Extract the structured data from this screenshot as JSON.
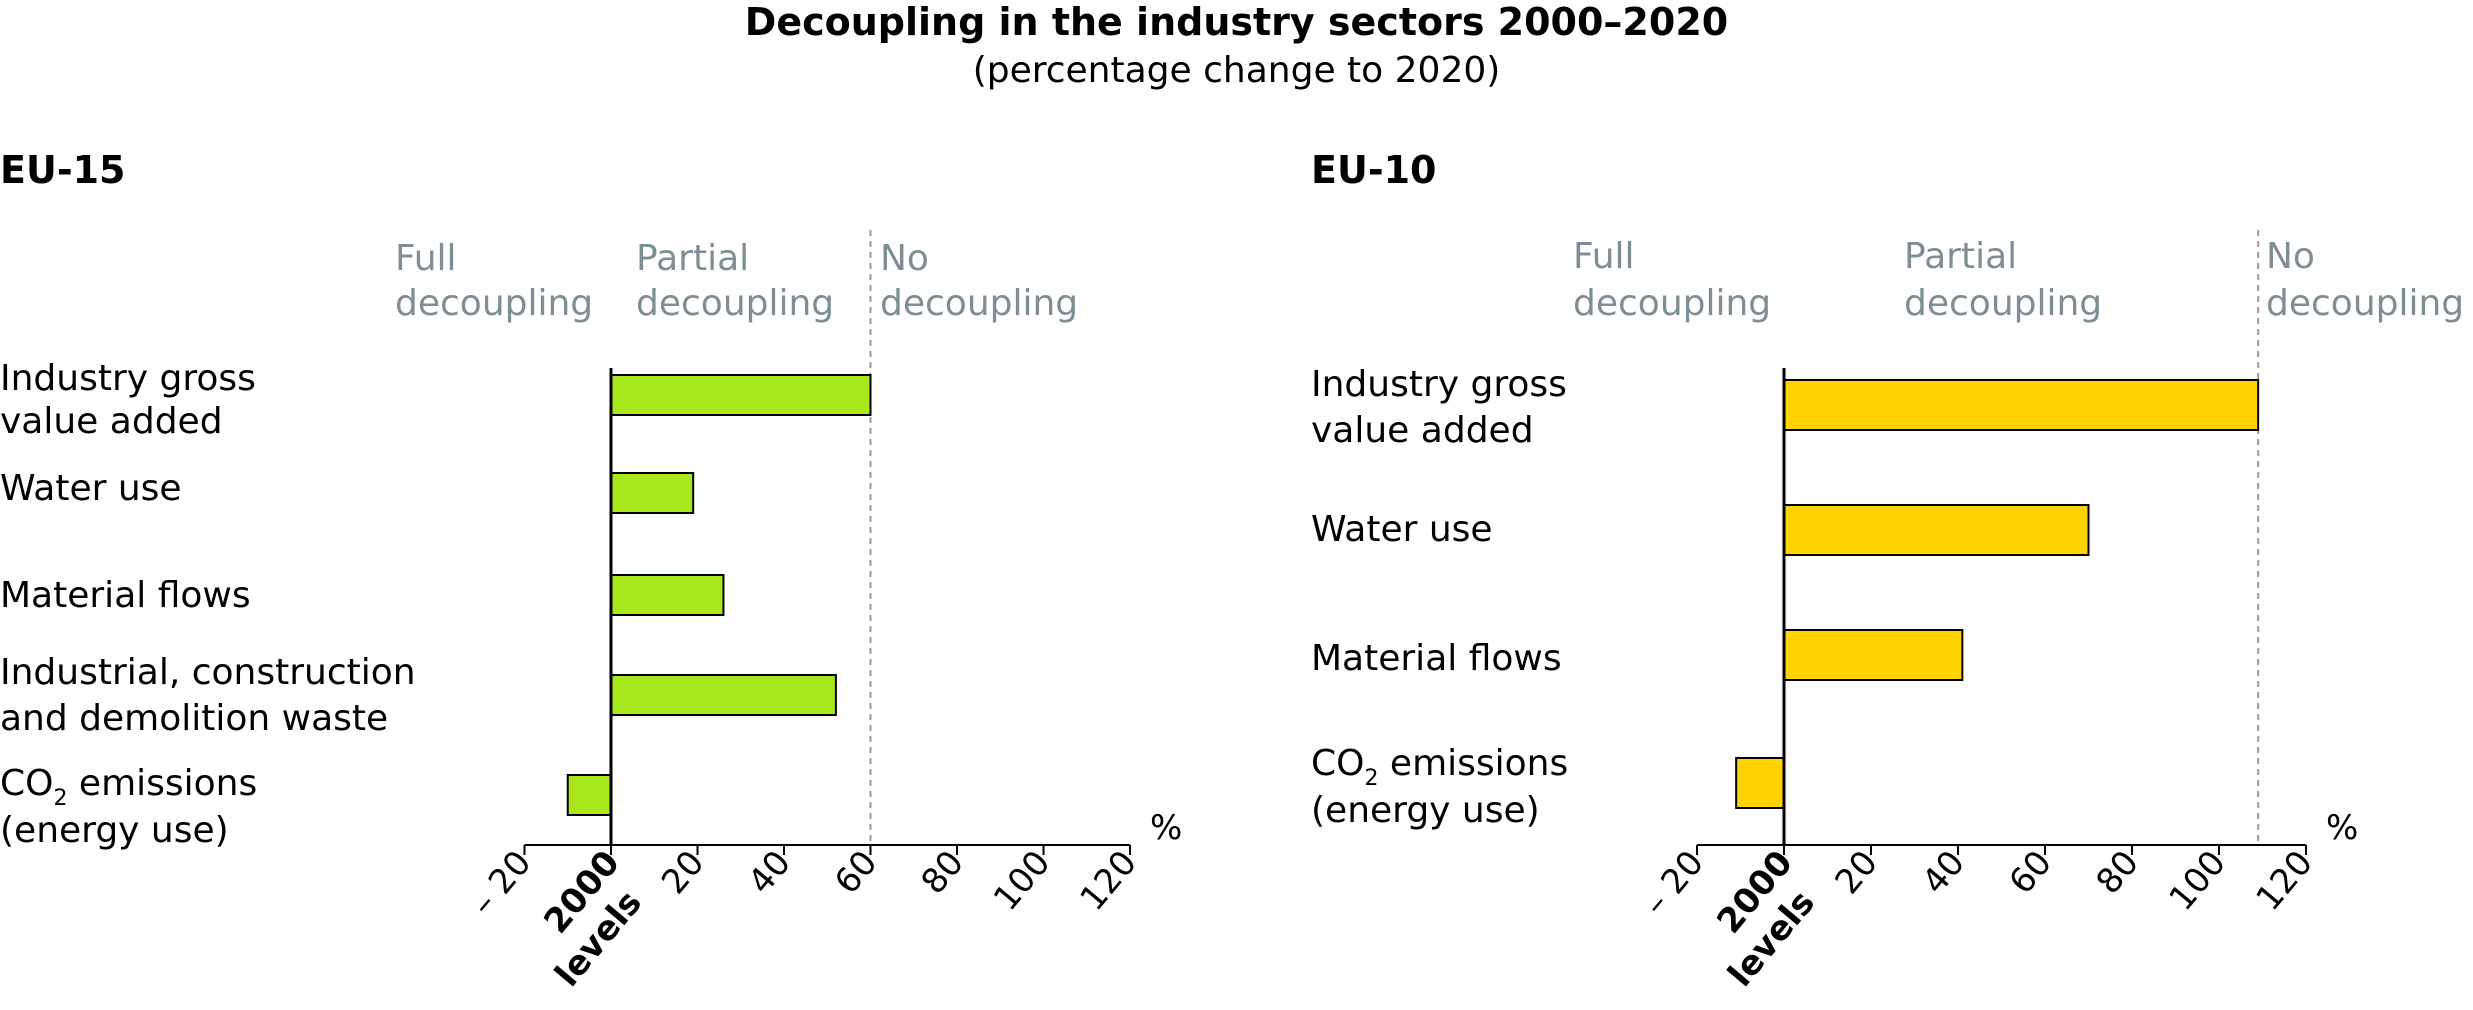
{
  "title": "Decoupling in the industry sectors 2000–2020",
  "subtitle": "(percentage change to 2020)",
  "colors": {
    "eu15_bar": "#a8e61e",
    "eu10_bar": "#ffd200",
    "zone_label": "#7d8f94",
    "reference_line": "#999999"
  },
  "chart_data": [
    {
      "type": "bar",
      "orientation": "horizontal",
      "panel_title": "EU-15",
      "zone_labels": [
        {
          "line1": "Full",
          "line2": "decoupling"
        },
        {
          "line1": "Partial",
          "line2": "decoupling"
        },
        {
          "line1": "No",
          "line2": "decoupling"
        }
      ],
      "categories": [
        [
          "Industry gross",
          "value added"
        ],
        [
          "Water use"
        ],
        [
          "Material flows"
        ],
        [
          "Industrial, construction",
          "and demolition waste"
        ],
        [
          "CO2 emissions",
          "(energy use)"
        ]
      ],
      "values": [
        60,
        19,
        26,
        52,
        -10
      ],
      "reference_value": 60,
      "xlim": [
        -20,
        120
      ],
      "xticks": [
        "– 20",
        "20",
        "40",
        "60",
        "80",
        "100",
        "120"
      ],
      "xtick_values": [
        -20,
        20,
        40,
        60,
        80,
        100,
        120
      ],
      "zero_label": [
        "2000",
        "levels"
      ],
      "unit": "%"
    },
    {
      "type": "bar",
      "orientation": "horizontal",
      "panel_title": "EU-10",
      "zone_labels": [
        {
          "line1": "Full",
          "line2": "decoupling"
        },
        {
          "line1": "Partial",
          "line2": "decoupling"
        },
        {
          "line1": "No",
          "line2": "decoupling"
        }
      ],
      "categories": [
        [
          "Industry gross",
          "value added"
        ],
        [
          "Water use"
        ],
        [
          "Material flows"
        ],
        [
          "CO2 emissions",
          "(energy use)"
        ]
      ],
      "values": [
        109,
        70,
        41,
        -11
      ],
      "reference_value": 109,
      "xlim": [
        -20,
        120
      ],
      "xticks": [
        "– 20",
        "20",
        "40",
        "60",
        "80",
        "100",
        "120"
      ],
      "xtick_values": [
        -20,
        20,
        40,
        60,
        80,
        100,
        120
      ],
      "zero_label": [
        "2000",
        "levels"
      ],
      "unit": "%"
    }
  ]
}
